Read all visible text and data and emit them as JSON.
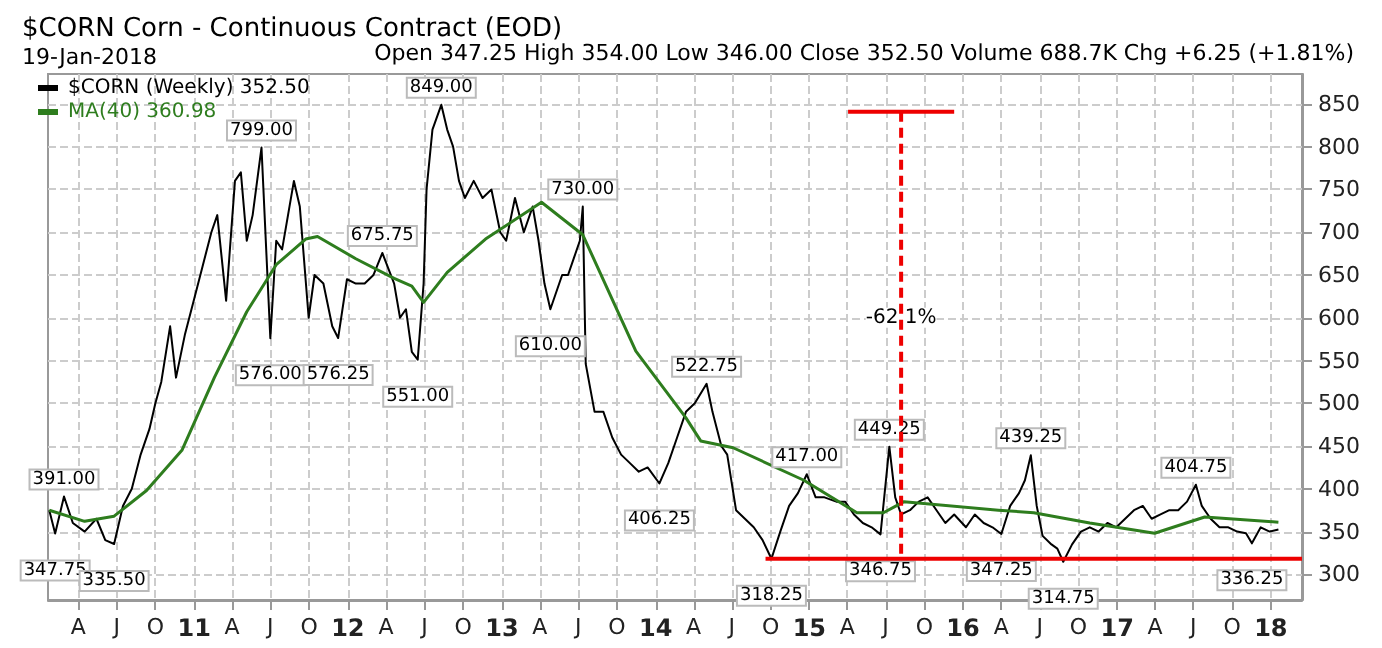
{
  "chart_data": {
    "type": "line",
    "title": "$CORN Corn - Continuous Contract (EOD)",
    "subtitle": "19-Jan-2018",
    "annotations": [
      "Open 347.25 High 354.00 Low 346.00 Close 352.50 Volume 688.7K Chg +6.25 (+1.81%)",
      {
        "text": "391.00",
        "x": "2010-02-26",
        "y": 391
      },
      {
        "text": "347.75",
        "x": "2010-02-05",
        "y": 347.75
      },
      {
        "text": "335.50",
        "x": "2010-06-25",
        "y": 335.5
      },
      {
        "text": "799.00",
        "x": "2011-06-10",
        "y": 799
      },
      {
        "text": "576.00",
        "x": "2011-07-01",
        "y": 576
      },
      {
        "text": "576.25",
        "x": "2011-12-09",
        "y": 576.25
      },
      {
        "text": "675.75",
        "x": "2012-03-23",
        "y": 675.75
      },
      {
        "text": "551.00",
        "x": "2012-06-15",
        "y": 551
      },
      {
        "text": "849.00",
        "x": "2012-08-10",
        "y": 849
      },
      {
        "text": "730.00",
        "x": "2013-07-12",
        "y": 730
      },
      {
        "text": "610.00",
        "x": "2013-04-26",
        "y": 610
      },
      {
        "text": "406.25",
        "x": "2014-01-10",
        "y": 406.25
      },
      {
        "text": "522.75",
        "x": "2014-05-02",
        "y": 522.75
      },
      {
        "text": "318.25",
        "x": "2014-10-03",
        "y": 318.25
      },
      {
        "text": "417.00",
        "x": "2014-12-26",
        "y": 417
      },
      {
        "text": "346.75",
        "x": "2015-06-19",
        "y": 346.75
      },
      {
        "text": "449.25",
        "x": "2015-07-10",
        "y": 449.25
      },
      {
        "text": "347.25",
        "x": "2016-04-01",
        "y": 347.25
      },
      {
        "text": "439.25",
        "x": "2016-06-10",
        "y": 439.25
      },
      {
        "text": "314.75",
        "x": "2016-08-26",
        "y": 314.75
      },
      {
        "text": "404.75",
        "x": "2017-07-07",
        "y": 404.75
      },
      {
        "text": "336.25",
        "x": "2017-11-17",
        "y": 336.25
      },
      {
        "text": "-62.1%",
        "x": "2015-08-07",
        "y": 600
      }
    ],
    "series": [
      {
        "name": "$CORN (Weekly) 352.50",
        "color": "#000000",
        "x": [
          "2010-01-22",
          "2010-02-05",
          "2010-02-26",
          "2010-03-19",
          "2010-04-16",
          "2010-05-14",
          "2010-06-04",
          "2010-06-25",
          "2010-07-16",
          "2010-08-06",
          "2010-08-27",
          "2010-09-17",
          "2010-10-01",
          "2010-10-15",
          "2010-11-05",
          "2010-11-19",
          "2010-12-10",
          "2010-12-31",
          "2011-01-21",
          "2011-02-11",
          "2011-02-25",
          "2011-03-18",
          "2011-04-08",
          "2011-04-22",
          "2011-05-06",
          "2011-05-20",
          "2011-06-10",
          "2011-06-24",
          "2011-07-01",
          "2011-07-15",
          "2011-07-29",
          "2011-08-12",
          "2011-08-26",
          "2011-09-09",
          "2011-09-30",
          "2011-10-14",
          "2011-11-04",
          "2011-11-25",
          "2011-12-09",
          "2011-12-30",
          "2012-01-20",
          "2012-02-10",
          "2012-03-02",
          "2012-03-23",
          "2012-04-20",
          "2012-05-04",
          "2012-05-18",
          "2012-06-01",
          "2012-06-15",
          "2012-06-29",
          "2012-07-06",
          "2012-07-20",
          "2012-08-10",
          "2012-08-24",
          "2012-09-07",
          "2012-09-21",
          "2012-10-05",
          "2012-10-26",
          "2012-11-16",
          "2012-12-07",
          "2012-12-28",
          "2013-01-11",
          "2013-02-01",
          "2013-02-22",
          "2013-03-15",
          "2013-03-29",
          "2013-04-12",
          "2013-04-26",
          "2013-05-24",
          "2013-06-07",
          "2013-06-21",
          "2013-07-05",
          "2013-07-12",
          "2013-07-19",
          "2013-08-09",
          "2013-08-30",
          "2013-09-20",
          "2013-10-11",
          "2013-11-01",
          "2013-11-22",
          "2013-12-13",
          "2014-01-10",
          "2014-01-31",
          "2014-02-21",
          "2014-03-14",
          "2014-04-04",
          "2014-05-02",
          "2014-05-16",
          "2014-06-06",
          "2014-06-20",
          "2014-07-11",
          "2014-08-01",
          "2014-08-22",
          "2014-09-12",
          "2014-10-03",
          "2014-10-24",
          "2014-11-14",
          "2014-12-05",
          "2014-12-26",
          "2015-01-16",
          "2015-02-06",
          "2015-03-06",
          "2015-03-27",
          "2015-04-17",
          "2015-05-08",
          "2015-05-29",
          "2015-06-19",
          "2015-07-10",
          "2015-07-24",
          "2015-08-07",
          "2015-08-28",
          "2015-09-18",
          "2015-10-09",
          "2015-10-30",
          "2015-11-20",
          "2015-12-11",
          "2016-01-08",
          "2016-01-29",
          "2016-02-19",
          "2016-03-11",
          "2016-04-01",
          "2016-04-22",
          "2016-05-13",
          "2016-05-27",
          "2016-06-10",
          "2016-06-24",
          "2016-07-08",
          "2016-07-29",
          "2016-08-12",
          "2016-08-26",
          "2016-09-16",
          "2016-10-07",
          "2016-10-28",
          "2016-11-18",
          "2016-12-09",
          "2016-12-30",
          "2017-01-20",
          "2017-02-10",
          "2017-03-03",
          "2017-03-24",
          "2017-04-14",
          "2017-05-05",
          "2017-05-26",
          "2017-06-16",
          "2017-07-07",
          "2017-07-21",
          "2017-08-11",
          "2017-09-01",
          "2017-09-22",
          "2017-10-13",
          "2017-11-03",
          "2017-11-17",
          "2017-12-08",
          "2017-12-29",
          "2018-01-19"
        ],
        "values": [
          375,
          347.75,
          391,
          360,
          350,
          365,
          340,
          335.5,
          380,
          400,
          440,
          470,
          500,
          525,
          590,
          530,
          580,
          620,
          660,
          700,
          720,
          620,
          760,
          770,
          690,
          720,
          799,
          650,
          576,
          690,
          680,
          720,
          760,
          730,
          600,
          650,
          640,
          590,
          576.25,
          645,
          640,
          640,
          650,
          675.75,
          640,
          600,
          610,
          560,
          551,
          640,
          750,
          820,
          849,
          820,
          800,
          760,
          740,
          760,
          740,
          750,
          700,
          690,
          740,
          700,
          730,
          690,
          640,
          610,
          650,
          650,
          670,
          690,
          730,
          546,
          490,
          490,
          460,
          440,
          430,
          420,
          425,
          406.25,
          430,
          460,
          490,
          500,
          522.75,
          490,
          450,
          440,
          375,
          365,
          355,
          340,
          318.25,
          350,
          380,
          395,
          417,
          390,
          390,
          385,
          385,
          370,
          360,
          355,
          346.75,
          449.25,
          390,
          370,
          375,
          385,
          390,
          375,
          360,
          370,
          355,
          370,
          360,
          355,
          347.25,
          380,
          395,
          410,
          439.25,
          380,
          345,
          335,
          330,
          314.75,
          335,
          350,
          355,
          350,
          360,
          355,
          365,
          375,
          380,
          365,
          370,
          375,
          375,
          385,
          404.75,
          380,
          365,
          355,
          355,
          350,
          348,
          336.25,
          355,
          350,
          352.5
        ]
      },
      {
        "name": "MA(40) 360.98",
        "color": "#2e7d1e",
        "x": [
          "2010-01-22",
          "2010-04-16",
          "2010-06-25",
          "2010-09-10",
          "2010-12-03",
          "2011-02-18",
          "2011-05-06",
          "2011-07-15",
          "2011-09-23",
          "2011-10-21",
          "2012-01-20",
          "2012-04-20",
          "2012-06-01",
          "2012-06-29",
          "2012-08-24",
          "2012-11-23",
          "2013-04-05",
          "2013-07-12",
          "2013-11-15",
          "2014-03-14",
          "2014-04-18",
          "2014-07-04",
          "2014-12-19",
          "2015-04-24",
          "2015-06-26",
          "2015-08-14",
          "2016-03-25",
          "2016-06-17",
          "2016-10-28",
          "2017-03-31",
          "2017-07-28",
          "2018-01-19"
        ],
        "values": [
          375,
          362,
          368,
          398,
          445,
          530,
          607,
          662,
          692,
          695,
          669,
          646,
          637,
          618,
          653,
          692,
          735,
          697,
          561,
          483,
          456,
          448,
          410,
          372,
          372,
          385,
          375,
          372,
          360,
          348,
          367,
          360.98
        ]
      },
      {
        "color": "#ee0000",
        "x": [
          "2014-09-19",
          "2018-03-16"
        ],
        "values": [
          318.25,
          318.25
        ]
      },
      {
        "color": "#ee0000",
        "line_style": "dashed",
        "x": [
          "2015-08-07",
          "2015-08-07"
        ],
        "values": [
          841,
          318.25
        ]
      },
      {
        "color": "#ee0000",
        "x": [
          "2015-04-03",
          "2015-12-11"
        ],
        "values": [
          841,
          841
        ]
      }
    ],
    "xlim": [
      "2010-01-19",
      "2018-03-16"
    ],
    "ylim": [
      270,
      885
    ],
    "xticks": [
      {
        "value": "2010-04-01",
        "label": "A"
      },
      {
        "value": "2010-07-01",
        "label": "J"
      },
      {
        "value": "2010-10-01",
        "label": "O"
      },
      {
        "value": "2011-01-01",
        "label": "11"
      },
      {
        "value": "2011-04-01",
        "label": "A"
      },
      {
        "value": "2011-07-01",
        "label": "J"
      },
      {
        "value": "2011-10-01",
        "label": "O"
      },
      {
        "value": "2012-01-01",
        "label": "12"
      },
      {
        "value": "2012-04-01",
        "label": "A"
      },
      {
        "value": "2012-07-01",
        "label": "J"
      },
      {
        "value": "2012-10-01",
        "label": "O"
      },
      {
        "value": "2013-01-01",
        "label": "13"
      },
      {
        "value": "2013-04-01",
        "label": "A"
      },
      {
        "value": "2013-07-01",
        "label": "J"
      },
      {
        "value": "2013-10-01",
        "label": "O"
      },
      {
        "value": "2014-01-01",
        "label": "14"
      },
      {
        "value": "2014-04-01",
        "label": "A"
      },
      {
        "value": "2014-07-01",
        "label": "J"
      },
      {
        "value": "2014-10-01",
        "label": "O"
      },
      {
        "value": "2015-01-01",
        "label": "15"
      },
      {
        "value": "2015-04-01",
        "label": "A"
      },
      {
        "value": "2015-07-01",
        "label": "J"
      },
      {
        "value": "2015-10-01",
        "label": "O"
      },
      {
        "value": "2016-01-01",
        "label": "16"
      },
      {
        "value": "2016-04-01",
        "label": "A"
      },
      {
        "value": "2016-07-01",
        "label": "J"
      },
      {
        "value": "2016-10-01",
        "label": "O"
      },
      {
        "value": "2017-01-01",
        "label": "17"
      },
      {
        "value": "2017-04-01",
        "label": "A"
      },
      {
        "value": "2017-07-01",
        "label": "J"
      },
      {
        "value": "2017-10-01",
        "label": "O"
      },
      {
        "value": "2018-01-01",
        "label": "18"
      }
    ],
    "yticks": [
      300,
      350,
      400,
      450,
      500,
      550,
      600,
      650,
      700,
      750,
      800,
      850
    ],
    "grid": true,
    "legend": "top left",
    "marker": "none",
    "line_style": "solid"
  }
}
